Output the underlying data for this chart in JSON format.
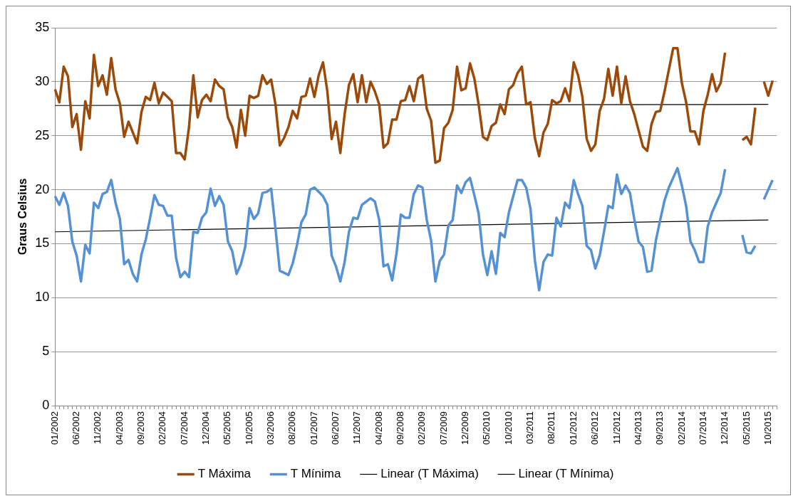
{
  "chart_data": {
    "type": "line",
    "ylabel": "Graus Celsius",
    "ylim": [
      0,
      35
    ],
    "yticks": [
      0,
      5,
      10,
      15,
      20,
      25,
      30,
      35
    ],
    "grid": "y",
    "legend": "bottom",
    "marker": "none",
    "categories": [
      "01/2002",
      null,
      null,
      null,
      null,
      "06/2002",
      null,
      null,
      null,
      null,
      "11/2002",
      null,
      null,
      null,
      null,
      "04/2003",
      null,
      null,
      null,
      null,
      "09/2003",
      null,
      null,
      null,
      null,
      "02/2004",
      null,
      null,
      null,
      null,
      "07/2004",
      null,
      null,
      null,
      null,
      "12/2004",
      null,
      null,
      null,
      null,
      "05/2005",
      null,
      null,
      null,
      null,
      "10/2005",
      null,
      null,
      null,
      null,
      "03/2006",
      null,
      null,
      null,
      null,
      "08/2006",
      null,
      null,
      null,
      null,
      "01/2007",
      null,
      null,
      null,
      null,
      "06/2007",
      null,
      null,
      null,
      null,
      "11/2007",
      null,
      null,
      null,
      null,
      "04/2008",
      null,
      null,
      null,
      null,
      "09/2008",
      null,
      null,
      null,
      null,
      "02/2009",
      null,
      null,
      null,
      null,
      "07/2009",
      null,
      null,
      null,
      null,
      "12/2009",
      null,
      null,
      null,
      null,
      "05/2010",
      null,
      null,
      null,
      null,
      "10/2010",
      null,
      null,
      null,
      null,
      "03/2011",
      null,
      null,
      null,
      null,
      "08/2011",
      null,
      null,
      null,
      null,
      "01/2012",
      null,
      null,
      null,
      null,
      "06/2012",
      null,
      null,
      null,
      null,
      "11/2012",
      null,
      null,
      null,
      null,
      "04/2013",
      null,
      null,
      null,
      null,
      "09/2013",
      null,
      null,
      null,
      null,
      "02/2014",
      null,
      null,
      null,
      null,
      "07/2014",
      null,
      null,
      null,
      null,
      "12/2014",
      null,
      null,
      null,
      null,
      "05/2015",
      null,
      null,
      null,
      null,
      "10/2015",
      null,
      null
    ],
    "series": [
      {
        "name": "T Máxima",
        "color": "#9c4a0a",
        "values": [
          29.3,
          28.1,
          31.4,
          30.5,
          25.8,
          27.0,
          23.7,
          28.2,
          26.6,
          32.5,
          29.6,
          30.6,
          28.8,
          32.2,
          29.3,
          28.0,
          24.9,
          26.3,
          25.3,
          24.3,
          27.2,
          28.6,
          28.3,
          29.9,
          28.0,
          29.0,
          28.6,
          28.2,
          23.4,
          23.4,
          22.8,
          25.8,
          30.6,
          26.7,
          28.3,
          28.8,
          28.2,
          30.2,
          29.6,
          29.3,
          26.7,
          25.8,
          23.9,
          27.4,
          25.0,
          28.7,
          28.5,
          28.7,
          30.6,
          29.8,
          30.2,
          27.9,
          24.1,
          24.8,
          25.8,
          27.3,
          26.6,
          28.6,
          28.7,
          30.3,
          28.6,
          30.6,
          31.8,
          29.1,
          24.7,
          26.3,
          23.4,
          27.0,
          29.7,
          30.7,
          28.1,
          30.6,
          28.1,
          30.0,
          29.1,
          27.9,
          23.9,
          24.3,
          26.5,
          26.5,
          28.2,
          28.3,
          29.6,
          28.2,
          30.3,
          30.6,
          27.5,
          26.4,
          22.5,
          22.7,
          25.7,
          26.2,
          27.4,
          31.4,
          29.2,
          29.4,
          31.7,
          30.3,
          27.9,
          24.9,
          24.6,
          25.9,
          26.2,
          27.9,
          27.0,
          29.3,
          29.7,
          30.8,
          31.4,
          27.9,
          28.1,
          24.8,
          23.1,
          25.3,
          26.1,
          28.3,
          28.0,
          28.2,
          29.4,
          28.2,
          31.8,
          30.6,
          28.6,
          24.7,
          23.6,
          24.2,
          27.3,
          28.4,
          31.2,
          28.7,
          31.4,
          28.0,
          30.5,
          28.2,
          27.0,
          25.5,
          24.0,
          23.6,
          26.1,
          27.2,
          27.3,
          29.1,
          31.1,
          33.1,
          33.1,
          29.9,
          28.1,
          25.4,
          25.4,
          24.2,
          27.3,
          28.8,
          30.7,
          29.1,
          29.9,
          32.7,
          null,
          null,
          null,
          24.6,
          24.9,
          24.2,
          27.6,
          null,
          30.0,
          28.7,
          30.1,
          null
        ]
      },
      {
        "name": "T Mínima",
        "color": "#5592d5",
        "values": [
          19.4,
          18.6,
          19.7,
          18.5,
          15.2,
          13.9,
          11.5,
          14.9,
          14.1,
          18.8,
          18.3,
          19.6,
          19.8,
          20.9,
          18.8,
          17.3,
          13.1,
          13.5,
          12.2,
          11.5,
          14.0,
          15.4,
          17.4,
          19.5,
          18.6,
          18.5,
          17.6,
          17.6,
          13.7,
          11.9,
          12.4,
          11.9,
          16.1,
          16.0,
          17.4,
          17.9,
          20.1,
          18.5,
          19.4,
          18.6,
          15.2,
          14.3,
          12.2,
          13.1,
          14.7,
          18.3,
          17.3,
          17.8,
          19.7,
          19.8,
          20.1,
          16.4,
          12.5,
          12.3,
          12.1,
          13.2,
          14.9,
          17.0,
          17.7,
          20.0,
          20.2,
          19.8,
          19.4,
          18.6,
          13.9,
          12.9,
          11.5,
          13.3,
          16.1,
          17.4,
          17.3,
          18.6,
          18.9,
          19.2,
          18.9,
          17.2,
          12.9,
          13.1,
          11.6,
          14.1,
          17.7,
          17.4,
          17.4,
          19.6,
          20.4,
          20.2,
          17.2,
          15.3,
          11.5,
          13.4,
          14.0,
          16.7,
          17.2,
          20.4,
          19.7,
          20.7,
          21.1,
          19.5,
          17.8,
          14.0,
          12.1,
          14.3,
          12.2,
          16.0,
          15.6,
          17.9,
          19.4,
          20.9,
          20.9,
          20.2,
          18.2,
          13.5,
          10.7,
          13.3,
          14.0,
          13.9,
          17.4,
          16.6,
          18.8,
          18.3,
          20.9,
          19.6,
          18.5,
          14.8,
          14.4,
          12.7,
          13.9,
          16.1,
          18.5,
          18.3,
          21.4,
          19.6,
          20.4,
          19.7,
          17.3,
          15.2,
          14.7,
          12.4,
          12.5,
          15.3,
          17.2,
          19.0,
          20.2,
          21.1,
          22.0,
          20.4,
          18.5,
          15.2,
          14.4,
          13.3,
          13.3,
          16.6,
          17.9,
          18.8,
          19.7,
          21.9,
          null,
          null,
          null,
          15.8,
          14.2,
          14.1,
          14.8,
          null,
          19.1,
          20.0,
          20.9,
          null
        ]
      },
      {
        "name": "Linear (T Máxima)",
        "color": "#000000",
        "type": "line",
        "x": [
          "01/2002",
          "10/2015"
        ],
        "values": [
          27.8,
          27.9
        ]
      },
      {
        "name": "Linear (T Mínima)",
        "color": "#000000",
        "type": "line",
        "x": [
          "01/2002",
          "10/2015"
        ],
        "values": [
          16.1,
          17.2
        ]
      }
    ]
  }
}
